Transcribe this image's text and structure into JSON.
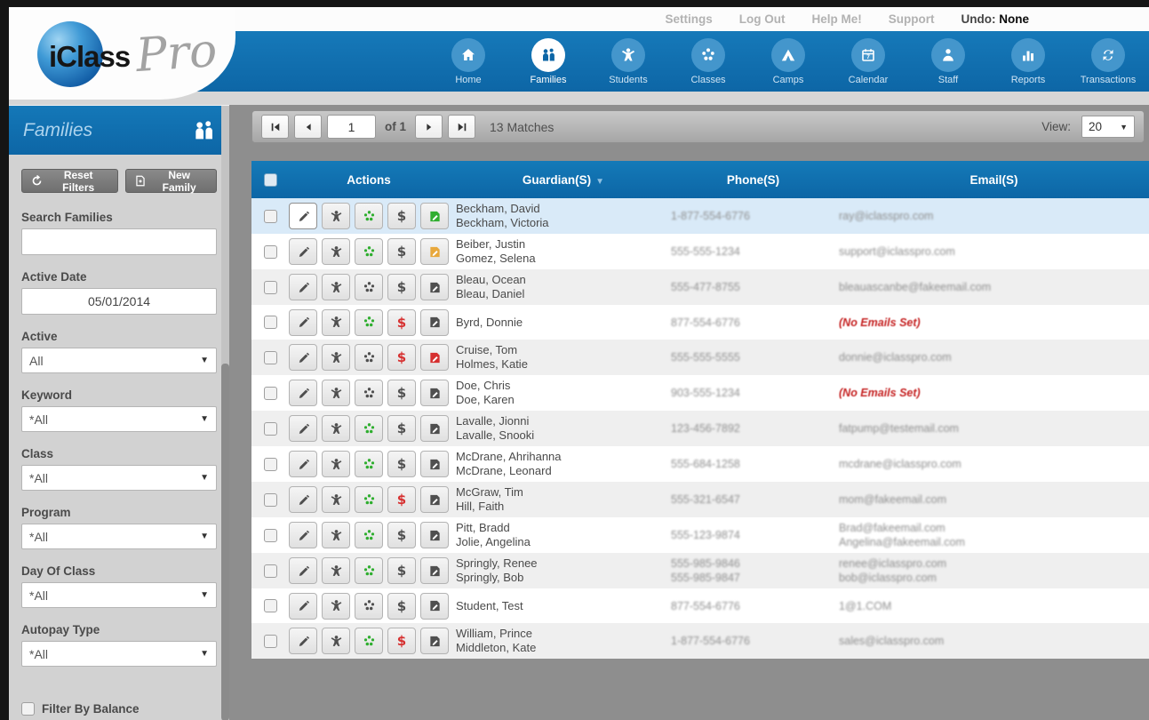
{
  "topbar": {
    "links": [
      "Settings",
      "Log Out",
      "Help Me!",
      "Support"
    ],
    "undo_label": "Undo:",
    "undo_value": "None"
  },
  "brand": {
    "name": "iClass",
    "suffix": "Pro"
  },
  "nav": {
    "active": "Families",
    "items": [
      {
        "label": "Home",
        "icon": "home-icon"
      },
      {
        "label": "Families",
        "icon": "families-icon"
      },
      {
        "label": "Students",
        "icon": "students-icon"
      },
      {
        "label": "Classes",
        "icon": "classes-icon"
      },
      {
        "label": "Camps",
        "icon": "camps-icon"
      },
      {
        "label": "Calendar",
        "icon": "calendar-icon"
      },
      {
        "label": "Staff",
        "icon": "staff-icon"
      },
      {
        "label": "Reports",
        "icon": "reports-icon"
      },
      {
        "label": "Transactions",
        "icon": "transactions-icon"
      }
    ]
  },
  "sidebar": {
    "title": "Families",
    "reset_button": "Reset Filters",
    "new_button": "New Family",
    "filters": [
      {
        "label": "Search Families",
        "type": "text",
        "value": ""
      },
      {
        "label": "Active Date",
        "type": "text",
        "value": "05/01/2014"
      },
      {
        "label": "Active",
        "type": "select",
        "value": "All"
      },
      {
        "label": "Keyword",
        "type": "select",
        "value": "*All"
      },
      {
        "label": "Class",
        "type": "select",
        "value": "*All"
      },
      {
        "label": "Program",
        "type": "select",
        "value": "*All"
      },
      {
        "label": "Day Of Class",
        "type": "select",
        "value": "*All"
      },
      {
        "label": "Autopay Type",
        "type": "select",
        "value": "*All"
      }
    ],
    "balance_checkbox_label": "Filter By Balance"
  },
  "toolbar": {
    "page_value": "1",
    "of_label": "of 1",
    "matches": "13 Matches",
    "view_label": "View:",
    "view_value": "20"
  },
  "table": {
    "columns": {
      "actions": "Actions",
      "guardian": "Guardian(S)",
      "phone": "Phone(S)",
      "email": "Email(S)"
    },
    "action_icons": [
      "pencil-edit-icon",
      "student-person-icon",
      "family-group-icon",
      "dollar-payments-icon",
      "note-ledger-icon"
    ],
    "colors": {
      "nav_blue": "#0f70b2",
      "selected_row": "#d9eaf8",
      "icon_green": "#2fae2f",
      "icon_red": "#d63030",
      "icon_yellow": "#e8a83c",
      "no_email_red": "#c52222"
    },
    "rows": [
      {
        "guardians": [
          "Beckham, David",
          "Beckham, Victoria"
        ],
        "phones": [
          "1-877-554-6776"
        ],
        "emails": [
          "ray@iclasspro.com"
        ],
        "family_icon": "green",
        "dollar_icon": "gray",
        "note_icon": "green",
        "selected": true,
        "edit_pressed": true
      },
      {
        "guardians": [
          "Beiber, Justin",
          "Gomez, Selena"
        ],
        "phones": [
          "555-555-1234"
        ],
        "emails": [
          "support@iclasspro.com"
        ],
        "family_icon": "green",
        "dollar_icon": "gray",
        "note_icon": "yellow",
        "selected": false,
        "edit_pressed": false
      },
      {
        "guardians": [
          "Bleau, Ocean",
          "Bleau, Daniel"
        ],
        "phones": [
          "555-477-8755"
        ],
        "emails": [
          "bleauascanbe@fakeemail.com"
        ],
        "family_icon": "gray",
        "dollar_icon": "gray",
        "note_icon": "gray",
        "selected": false,
        "edit_pressed": false
      },
      {
        "guardians": [
          "Byrd, Donnie"
        ],
        "phones": [
          "877-554-6776"
        ],
        "emails": [
          "(No Emails Set)"
        ],
        "family_icon": "green",
        "dollar_icon": "red",
        "note_icon": "gray",
        "selected": false,
        "edit_pressed": false
      },
      {
        "guardians": [
          "Cruise, Tom",
          "Holmes, Katie"
        ],
        "phones": [
          "555-555-5555"
        ],
        "emails": [
          "donnie@iclasspro.com"
        ],
        "family_icon": "gray",
        "dollar_icon": "red",
        "note_icon": "red",
        "selected": false,
        "edit_pressed": false
      },
      {
        "guardians": [
          "Doe, Chris",
          "Doe, Karen"
        ],
        "phones": [
          "903-555-1234"
        ],
        "emails": [
          "(No Emails Set)"
        ],
        "family_icon": "gray",
        "dollar_icon": "gray",
        "note_icon": "gray",
        "selected": false,
        "edit_pressed": false
      },
      {
        "guardians": [
          "Lavalle, Jionni",
          "Lavalle, Snooki"
        ],
        "phones": [
          "123-456-7892"
        ],
        "emails": [
          "fatpump@testemail.com"
        ],
        "family_icon": "green",
        "dollar_icon": "gray",
        "note_icon": "gray",
        "selected": false,
        "edit_pressed": false
      },
      {
        "guardians": [
          "McDrane, Ahrihanna",
          "McDrane, Leonard"
        ],
        "phones": [
          "555-684-1258"
        ],
        "emails": [
          "mcdrane@iclasspro.com"
        ],
        "family_icon": "green",
        "dollar_icon": "gray",
        "note_icon": "gray",
        "selected": false,
        "edit_pressed": false
      },
      {
        "guardians": [
          "McGraw, Tim",
          "Hill, Faith"
        ],
        "phones": [
          "555-321-6547"
        ],
        "emails": [
          "mom@fakeemail.com"
        ],
        "family_icon": "green",
        "dollar_icon": "red",
        "note_icon": "gray",
        "selected": false,
        "edit_pressed": false
      },
      {
        "guardians": [
          "Pitt, Bradd",
          "Jolie, Angelina"
        ],
        "phones": [
          "555-123-9874"
        ],
        "emails": [
          "Brad@fakeemail.com",
          "Angelina@fakeemail.com"
        ],
        "family_icon": "green",
        "dollar_icon": "gray",
        "note_icon": "gray",
        "selected": false,
        "edit_pressed": false
      },
      {
        "guardians": [
          "Springly, Renee",
          "Springly, Bob"
        ],
        "phones": [
          "555-985-9846",
          "555-985-9847"
        ],
        "emails": [
          "renee@iclasspro.com",
          "bob@iclasspro.com"
        ],
        "family_icon": "green",
        "dollar_icon": "gray",
        "note_icon": "gray",
        "selected": false,
        "edit_pressed": false
      },
      {
        "guardians": [
          "Student, Test"
        ],
        "phones": [
          "877-554-6776"
        ],
        "emails": [
          "1@1.COM"
        ],
        "family_icon": "gray",
        "dollar_icon": "gray",
        "note_icon": "gray",
        "selected": false,
        "edit_pressed": false
      },
      {
        "guardians": [
          "William, Prince",
          "Middleton, Kate"
        ],
        "phones": [
          "1-877-554-6776"
        ],
        "emails": [
          "sales@iclasspro.com"
        ],
        "family_icon": "green",
        "dollar_icon": "red",
        "note_icon": "gray",
        "selected": false,
        "edit_pressed": false
      }
    ]
  }
}
